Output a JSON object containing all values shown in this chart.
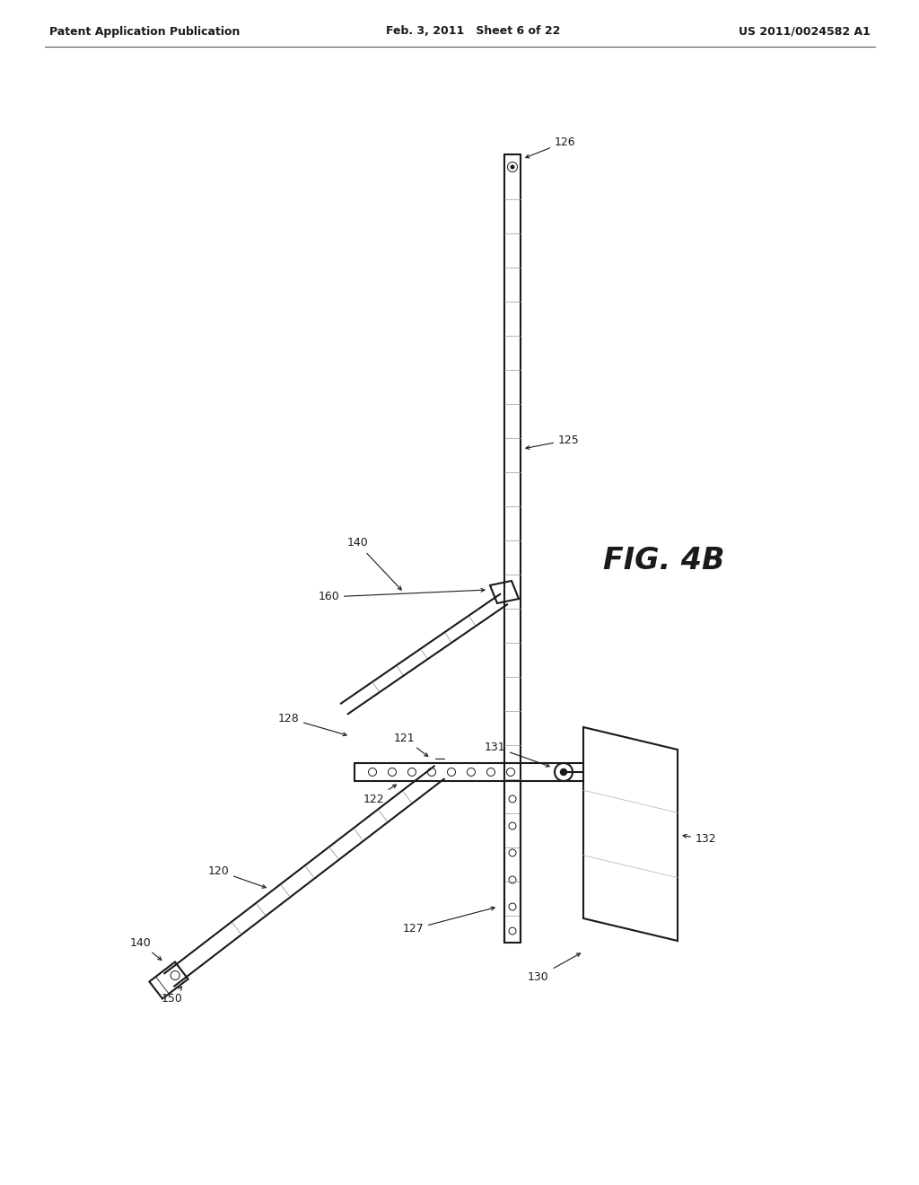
{
  "header_left": "Patent Application Publication",
  "header_mid": "Feb. 3, 2011   Sheet 6 of 22",
  "header_right": "US 2011/0024582 A1",
  "fig_label": "FIG. 4B",
  "bg": "#ffffff",
  "lc": "#1a1a1a"
}
